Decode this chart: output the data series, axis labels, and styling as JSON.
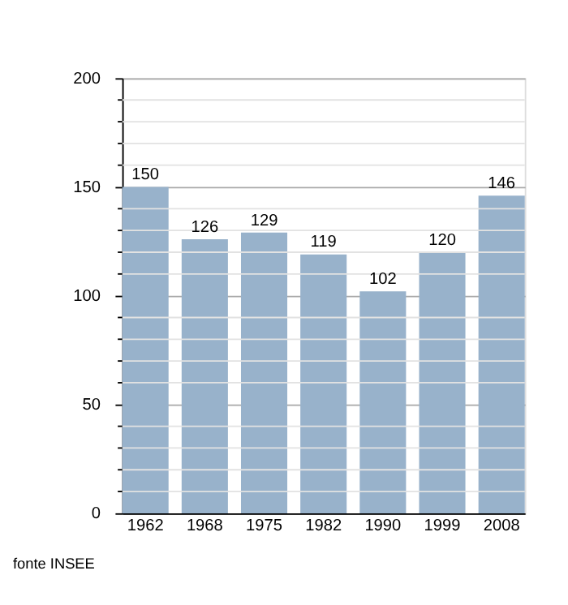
{
  "chart_data": {
    "type": "bar",
    "categories": [
      "1962",
      "1968",
      "1975",
      "1982",
      "1990",
      "1999",
      "2008"
    ],
    "values": [
      150,
      126,
      129,
      119,
      102,
      120,
      146
    ],
    "color": "#98b2cb",
    "ylim": [
      0,
      200
    ],
    "yticks": [
      0,
      {
        "value": 10,
        "label": null
      },
      {
        "value": 20,
        "label": null
      },
      {
        "value": 30,
        "label": null
      },
      {
        "value": 40,
        "label": null
      },
      50,
      {
        "value": 60,
        "label": null
      },
      {
        "value": 70,
        "label": null
      },
      {
        "value": 80,
        "label": null
      },
      {
        "value": 90,
        "label": null
      },
      100,
      {
        "value": 110,
        "label": null
      },
      {
        "value": 120,
        "label": null
      },
      {
        "value": 130,
        "label": null
      },
      {
        "value": 140,
        "label": null
      },
      150,
      {
        "value": 160,
        "label": null
      },
      {
        "value": 170,
        "label": null
      },
      {
        "value": 180,
        "label": null
      },
      {
        "value": 190,
        "label": null
      },
      200
    ],
    "grid": true,
    "data_labels": true,
    "annotations": [
      "fonte INSEE"
    ]
  }
}
